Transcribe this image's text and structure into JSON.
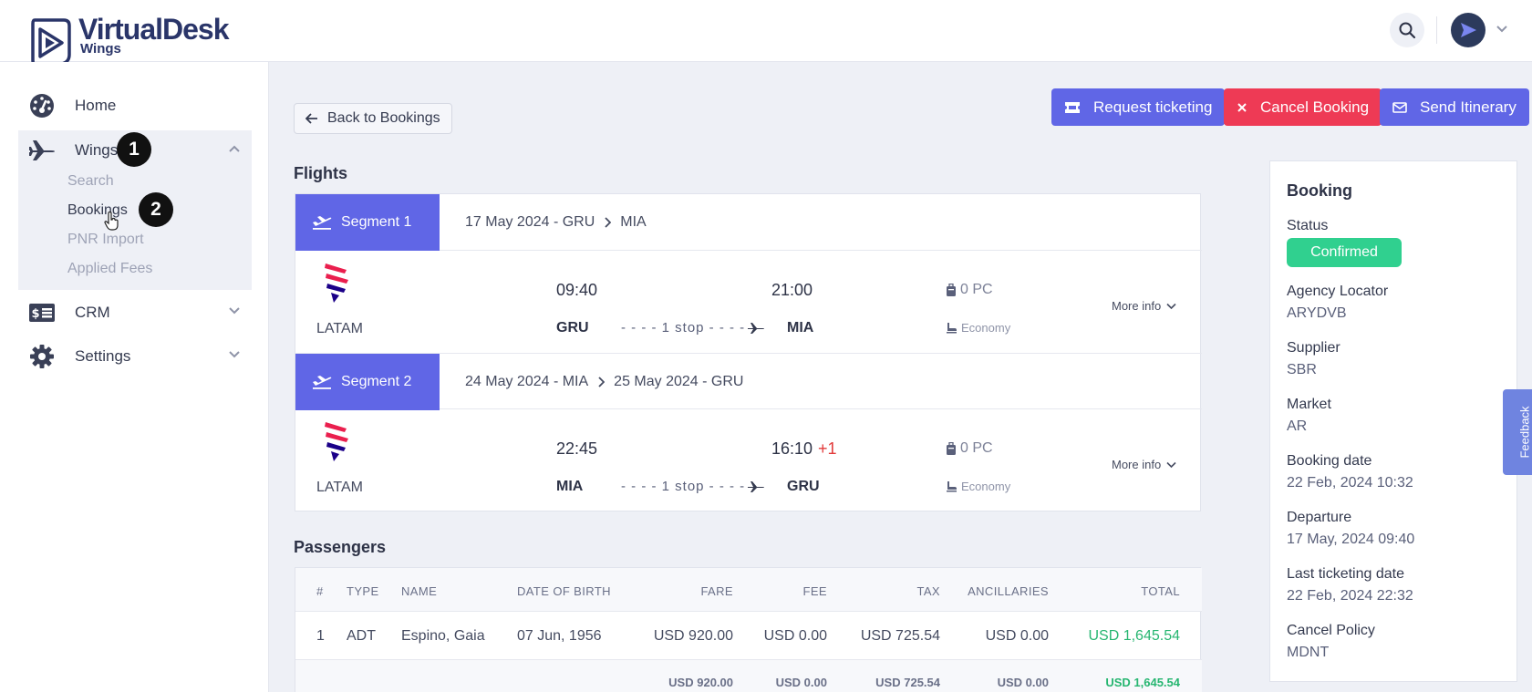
{
  "app": {
    "logo_title": "VirtualDesk",
    "logo_subtitle": "Wings"
  },
  "topbar": {
    "icons": [
      "search-icon",
      "avatar",
      "chevron-down-icon"
    ]
  },
  "sidebar": {
    "home": "Home",
    "wings": "Wings",
    "wings_sub": [
      "Search",
      "Bookings",
      "PNR Import",
      "Applied Fees"
    ],
    "crm": "CRM",
    "settings": "Settings",
    "annotations": [
      "1",
      "2"
    ]
  },
  "actions": {
    "back": "Back to Bookings",
    "request_ticketing": "Request ticketing",
    "cancel_booking": "Cancel Booking",
    "send_itinerary": "Send Itinerary"
  },
  "flights": {
    "title": "Flights",
    "segments": [
      {
        "tag": "Segment 1",
        "route_from": "17 May 2024 - GRU",
        "route_to": "MIA",
        "airline": "LATAM",
        "dep_time": "09:40",
        "arr_time": "21:00",
        "arr_offset": "",
        "dep_code": "GRU",
        "arr_code": "MIA",
        "stops": "- - - - 1 stop - - - -",
        "baggage": "0 PC",
        "cabin": "Economy",
        "more_info": "More info"
      },
      {
        "tag": "Segment 2",
        "route_from": "24 May 2024 - MIA",
        "route_to": "25 May 2024 - GRU",
        "airline": "LATAM",
        "dep_time": "22:45",
        "arr_time": "16:10",
        "arr_offset": "+1",
        "dep_code": "MIA",
        "arr_code": "GRU",
        "stops": "- - - - 1 stop - - - -",
        "baggage": "0 PC",
        "cabin": "Economy",
        "more_info": "More info"
      }
    ]
  },
  "passengers": {
    "title": "Passengers",
    "columns": [
      "#",
      "TYPE",
      "NAME",
      "DATE OF BIRTH",
      "FARE",
      "FEE",
      "TAX",
      "ANCILLARIES",
      "TOTAL"
    ],
    "rows": [
      [
        "1",
        "ADT",
        "Espino, Gaia",
        "07 Jun, 1956",
        "USD 920.00",
        "USD 0.00",
        "USD 725.54",
        "USD 0.00",
        "USD 1,645.54"
      ]
    ],
    "totals": [
      "USD 920.00",
      "USD 0.00",
      "USD 725.54",
      "USD 0.00",
      "USD 1,645.54"
    ]
  },
  "booking": {
    "title": "Booking",
    "status_label": "Status",
    "status_value": "Confirmed",
    "fields": [
      {
        "label": "Agency Locator",
        "value": "ARYDVB"
      },
      {
        "label": "Supplier",
        "value": "SBR"
      },
      {
        "label": "Market",
        "value": "AR"
      },
      {
        "label": "Booking date",
        "value": "22 Feb, 2024 10:32"
      },
      {
        "label": "Departure",
        "value": "17 May, 2024 09:40"
      },
      {
        "label": "Last ticketing date",
        "value": "22 Feb, 2024 22:32"
      },
      {
        "label": "Cancel Policy",
        "value": "MDNT"
      }
    ]
  },
  "feedback": "Feedback",
  "colors": {
    "primary": "#6066e6",
    "danger": "#ee3a55",
    "success": "#30d08f",
    "total_green": "#27b671",
    "brand_navy": "#2a3569"
  }
}
